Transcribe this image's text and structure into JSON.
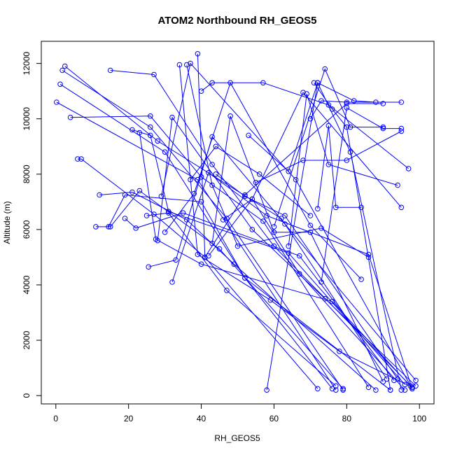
{
  "chart_data": {
    "type": "line",
    "title": "ATOM2 Northbound RH_GEOS5",
    "xlabel": "RH_GEOS5",
    "ylabel": "Altitude (m)",
    "xlim": [
      -4,
      104
    ],
    "ylim": [
      -300,
      12800
    ],
    "x_ticks": [
      0,
      20,
      40,
      60,
      80,
      100
    ],
    "y_ticks": [
      0,
      2000,
      4000,
      6000,
      8000,
      10000,
      12000
    ],
    "x_tick_labels": [
      "0",
      "20",
      "40",
      "60",
      "80",
      "100"
    ],
    "y_tick_labels": [
      "0",
      "2000",
      "4000",
      "6000",
      "8000",
      "10000",
      "12000"
    ],
    "grid": false,
    "legend": "none",
    "color": "#0000ff",
    "marker": "open-circle",
    "series": [
      {
        "x": [
          0.2,
          39,
          77
        ],
        "y": [
          10600,
          7800,
          200
        ]
      },
      {
        "x": [
          1.2,
          30,
          52,
          76
        ],
        "y": [
          11250,
          8800,
          4250,
          250
        ]
      },
      {
        "x": [
          1.8,
          26,
          47,
          79
        ],
        "y": [
          11750,
          9700,
          6400,
          200
        ]
      },
      {
        "x": [
          2.5,
          28,
          62,
          91
        ],
        "y": [
          11900,
          9200,
          6400,
          600
        ]
      },
      {
        "x": [
          4,
          26,
          40,
          57,
          86
        ],
        "y": [
          10050,
          10100,
          7900,
          6300,
          300
        ]
      },
      {
        "x": [
          6,
          7,
          27,
          41,
          72
        ],
        "y": [
          8550,
          8550,
          6550,
          5000,
          250
        ]
      },
      {
        "x": [
          11,
          15,
          23,
          45,
          79
        ],
        "y": [
          6100,
          6100,
          7400,
          5300,
          250
        ]
      },
      {
        "x": [
          12,
          21,
          36,
          49,
          88
        ],
        "y": [
          7250,
          7350,
          6350,
          4750,
          200
        ]
      },
      {
        "x": [
          14.5,
          19,
          40,
          52,
          92
        ],
        "y": [
          6100,
          7250,
          7000,
          4250,
          200
        ]
      },
      {
        "x": [
          15,
          27,
          43,
          60,
          98
        ],
        "y": [
          11750,
          11600,
          8350,
          5400,
          300
        ]
      },
      {
        "x": [
          19,
          22,
          35,
          67,
          93
        ],
        "y": [
          6400,
          6050,
          6600,
          5050,
          550
        ]
      },
      {
        "x": [
          21,
          26,
          31,
          64,
          96
        ],
        "y": [
          9600,
          9400,
          6650,
          5150,
          400
        ]
      },
      {
        "x": [
          23,
          27.5,
          40,
          76,
          97.5
        ],
        "y": [
          9500,
          5650,
          4750,
          3400,
          350
        ]
      },
      {
        "x": [
          25,
          31,
          47,
          77
        ],
        "y": [
          6500,
          6600,
          3800,
          350
        ]
      },
      {
        "x": [
          25.5,
          33,
          43,
          63,
          99
        ],
        "y": [
          4650,
          4900,
          9350,
          6200,
          550
        ]
      },
      {
        "x": [
          28,
          32,
          54,
          74,
          99
        ],
        "y": [
          5600,
          10050,
          6000,
          3500,
          350
        ]
      },
      {
        "x": [
          29,
          37,
          66,
          98
        ],
        "y": [
          7200,
          12000,
          7800,
          250
        ]
      },
      {
        "x": [
          30,
          38,
          48,
          70,
          84
        ],
        "y": [
          5900,
          7300,
          11300,
          6150,
          4200
        ]
      },
      {
        "x": [
          32,
          42,
          58,
          86,
          98
        ],
        "y": [
          4100,
          8050,
          6500,
          5100,
          250
        ]
      },
      {
        "x": [
          34,
          39,
          59,
          78,
          98
        ],
        "y": [
          11950,
          5100,
          3450,
          1600,
          300
        ]
      },
      {
        "x": [
          36,
          43,
          50,
          73,
          86
        ],
        "y": [
          11950,
          7600,
          5400,
          6050,
          5000
        ]
      },
      {
        "x": [
          37,
          44,
          56,
          70
        ],
        "y": [
          7800,
          9000,
          8000,
          6500
        ]
      },
      {
        "x": [
          39,
          41,
          52,
          80,
          90
        ],
        "y": [
          12350,
          5000,
          7250,
          10550,
          10550
        ]
      },
      {
        "x": [
          40,
          43,
          57,
          75,
          97
        ],
        "y": [
          11000,
          11300,
          11300,
          10500,
          8200
        ]
      },
      {
        "x": [
          42,
          54,
          67,
          96
        ],
        "y": [
          5050,
          7100,
          4400,
          200
        ]
      },
      {
        "x": [
          43,
          48,
          60,
          70,
          90
        ],
        "y": [
          5500,
          10100,
          5900,
          5900,
          500
        ]
      },
      {
        "x": [
          44,
          52,
          63,
          94
        ],
        "y": [
          8000,
          7200,
          6500,
          600
        ]
      },
      {
        "x": [
          46,
          54,
          68,
          95
        ],
        "y": [
          6350,
          7100,
          10950,
          6800
        ]
      },
      {
        "x": [
          53,
          64,
          72,
          81,
          95
        ],
        "y": [
          9400,
          8100,
          11300,
          8800,
          200
        ]
      },
      {
        "x": [
          55,
          68,
          80,
          95
        ],
        "y": [
          7700,
          8500,
          8500,
          9550
        ]
      },
      {
        "x": [
          58,
          72,
          82,
          88
        ],
        "y": [
          200,
          11300,
          10650,
          10600
        ]
      },
      {
        "x": [
          60,
          74,
          81,
          90
        ],
        "y": [
          6100,
          11800,
          9700,
          9700
        ]
      },
      {
        "x": [
          64,
          69,
          75,
          94
        ],
        "y": [
          5400,
          10900,
          8350,
          7600
        ]
      },
      {
        "x": [
          70,
          73,
          80,
          95
        ],
        "y": [
          10000,
          10650,
          10600,
          10600
        ]
      },
      {
        "x": [
          71,
          76,
          80,
          92
        ],
        "y": [
          11300,
          10350,
          9700,
          200
        ]
      },
      {
        "x": [
          72,
          75,
          77,
          84
        ],
        "y": [
          6750,
          9750,
          6800,
          6800
        ]
      },
      {
        "x": [
          73,
          80,
          90,
          95
        ],
        "y": [
          4100,
          10400,
          9650,
          9650
        ]
      }
    ]
  }
}
